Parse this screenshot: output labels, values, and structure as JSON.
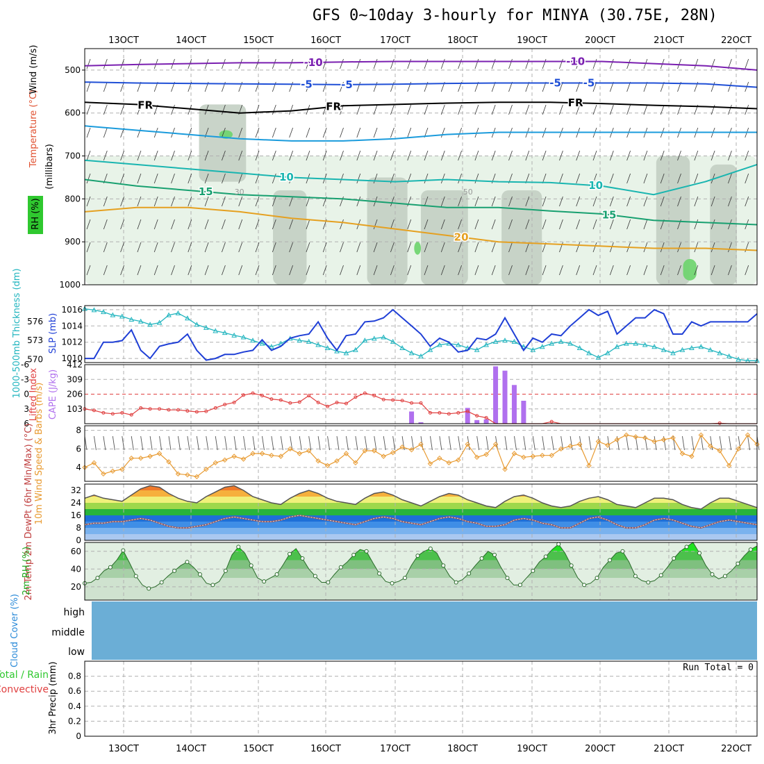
{
  "title": "GFS 0~10day 3-hourly for MINYA (30.75E, 28N)",
  "x_axis_labels": [
    "13OCT",
    "14OCT",
    "15OCT",
    "16OCT",
    "17OCT",
    "18OCT",
    "19OCT",
    "20OCT",
    "21OCT",
    "22OCT"
  ],
  "chart_data": [
    {
      "id": "upper_air",
      "type": "heatmap",
      "ylabel": "(millibars)",
      "ylim": [
        1000,
        450
      ],
      "yticks": [
        500,
        600,
        700,
        800,
        900,
        1000
      ],
      "legend_labels": {
        "rh": "RH (%)",
        "temperature": "Temperature (°C)",
        "wind": "Wind (m/s)"
      },
      "rh_contour_labels": [
        "30",
        "50"
      ],
      "isotherm_labels": [
        {
          "label": "-10",
          "t": 0.34
        },
        {
          "label": "-10",
          "t": 0.73
        },
        {
          "label": "-5",
          "t": 0.33
        },
        {
          "label": "-5",
          "t": 0.7
        },
        {
          "label": "FR",
          "t": 0.09
        },
        {
          "label": "FR",
          "t": 0.37
        },
        {
          "label": "FR",
          "t": 0.73
        },
        {
          "label": "-5",
          "t": 0.39
        },
        {
          "label": "-5",
          "t": 0.75
        },
        {
          "label": "10",
          "t": 0.3
        },
        {
          "label": "10",
          "t": 0.76
        },
        {
          "label": "15",
          "t": 0.18
        },
        {
          "label": "15",
          "t": 0.78
        },
        {
          "label": "20",
          "t": 0.56
        }
      ],
      "isotherms": [
        {
          "label": "-10",
          "color": "#7a1fb0",
          "p": [
            490,
            487,
            485,
            483,
            483,
            481,
            480,
            480,
            480,
            480,
            480,
            485,
            490,
            500
          ]
        },
        {
          "label": "-5",
          "color": "#1f4fd6",
          "p": [
            528,
            530,
            531,
            532,
            533,
            534,
            533,
            531,
            530,
            530,
            530,
            530,
            532,
            540
          ]
        },
        {
          "label": "FR",
          "color": "#000000",
          "p": [
            575,
            580,
            590,
            600,
            595,
            583,
            580,
            577,
            575,
            575,
            578,
            582,
            585,
            590
          ]
        },
        {
          "label": "-5",
          "color": "#1a9bdc",
          "p": [
            630,
            640,
            650,
            660,
            665,
            665,
            660,
            650,
            645,
            645,
            645,
            645,
            645,
            645
          ]
        },
        {
          "label": "10",
          "color": "#19b5b0",
          "p": [
            710,
            720,
            730,
            740,
            750,
            755,
            760,
            755,
            760,
            762,
            770,
            790,
            760,
            720
          ]
        },
        {
          "label": "15",
          "color": "#18a070",
          "p": [
            755,
            770,
            780,
            790,
            795,
            800,
            810,
            820,
            820,
            828,
            835,
            850,
            855,
            860
          ]
        },
        {
          "label": "20",
          "color": "#e5a020",
          "p": [
            830,
            820,
            820,
            830,
            845,
            855,
            870,
            885,
            900,
            905,
            910,
            915,
            915,
            920
          ]
        }
      ],
      "rh_blobs": [
        {
          "level": "light",
          "t": [
            0.0,
            1.0
          ],
          "p": [
            700,
            1000
          ]
        },
        {
          "level": "mid",
          "t": [
            0.17,
            0.24
          ],
          "p": [
            580,
            760
          ]
        },
        {
          "level": "mid",
          "t": [
            0.28,
            0.33
          ],
          "p": [
            780,
            1000
          ]
        },
        {
          "level": "mid",
          "t": [
            0.42,
            0.48
          ],
          "p": [
            750,
            1000
          ]
        },
        {
          "level": "mid",
          "t": [
            0.5,
            0.57
          ],
          "p": [
            780,
            1000
          ]
        },
        {
          "level": "mid",
          "t": [
            0.62,
            0.68
          ],
          "p": [
            780,
            1000
          ]
        },
        {
          "level": "mid",
          "t": [
            0.85,
            0.9
          ],
          "p": [
            700,
            1000
          ]
        },
        {
          "level": "mid",
          "t": [
            0.93,
            0.97
          ],
          "p": [
            720,
            1000
          ]
        },
        {
          "level": "dark",
          "t": [
            0.2,
            0.22
          ],
          "p": [
            640,
            660
          ]
        },
        {
          "level": "dark",
          "t": [
            0.49,
            0.5
          ],
          "p": [
            900,
            930
          ]
        },
        {
          "level": "dark",
          "t": [
            0.89,
            0.91
          ],
          "p": [
            940,
            990
          ]
        }
      ]
    },
    {
      "id": "slp_thickness",
      "type": "line",
      "ylabel_left": "1000-500mb Thickness (dm)",
      "ylabel_right": "SLP (mb)",
      "yticks_left": [
        570,
        573,
        576
      ],
      "yticks_right": [
        1010,
        1012,
        1014,
        1016
      ],
      "ylim_slp": [
        1009.5,
        1016.5
      ],
      "ylim_thk": [
        569.5,
        578.5
      ],
      "slp": [
        1010,
        1010,
        1012,
        1012,
        1012.2,
        1013.5,
        1011,
        1010,
        1011.5,
        1011.8,
        1012,
        1013,
        1011,
        1009.8,
        1010,
        1010.5,
        1010.5,
        1010.8,
        1011,
        1012.3,
        1011,
        1011.5,
        1012.5,
        1012.8,
        1013,
        1014.5,
        1012.5,
        1011,
        1012.8,
        1013,
        1014.5,
        1014.6,
        1015,
        1016,
        1015,
        1014,
        1013,
        1011.5,
        1012.5,
        1012,
        1010.8,
        1011,
        1012.5,
        1012.3,
        1013,
        1015,
        1013,
        1011,
        1012.5,
        1012,
        1013,
        1012.8,
        1014,
        1015,
        1016,
        1015.3,
        1015.8,
        1013,
        1014,
        1015,
        1015,
        1016,
        1015.5,
        1013,
        1013,
        1014.5,
        1014,
        1014.5,
        1014.5,
        1014.5,
        1014.5,
        1014.5,
        1015.5
      ],
      "thickness": [
        578,
        577.8,
        577.5,
        577,
        576.8,
        576.3,
        576,
        575.5,
        575.8,
        577,
        577.3,
        576.5,
        575.5,
        575,
        574.5,
        574.2,
        573.8,
        573.5,
        573,
        572.5,
        572,
        572.5,
        573.3,
        573,
        572.8,
        572.3,
        571.8,
        571.3,
        571,
        571.5,
        573,
        573.3,
        573.5,
        572.8,
        571.8,
        571,
        570.5,
        571.5,
        572.3,
        572.5,
        572.3,
        571.8,
        571.5,
        572.3,
        572.8,
        573,
        572.8,
        572,
        571.5,
        572,
        572.5,
        572.8,
        572.5,
        571.8,
        571,
        570.3,
        571,
        572,
        572.5,
        572.5,
        572.3,
        572,
        571.5,
        571,
        571.5,
        571.8,
        572,
        571.5,
        571,
        570.5,
        570,
        569.8,
        569.8
      ]
    },
    {
      "id": "cape_li",
      "type": "bar",
      "ylabel_left": "Lifted Index",
      "ylabel_right": "CAPE (J/kg)",
      "yticks_li": [
        "-6",
        "-3",
        "0",
        "3",
        "6"
      ],
      "yticks_cape": [
        103,
        206,
        309,
        412
      ],
      "ylim_cape": [
        0,
        412
      ],
      "ylim_li": [
        -6,
        6
      ],
      "lifted_index": [
        3,
        3.3,
        3.8,
        4,
        3.8,
        4.2,
        2.8,
        3,
        3,
        3.2,
        3.2,
        3.4,
        3.6,
        3.5,
        2.8,
        2.1,
        1.7,
        0.2,
        -0.2,
        0.3,
        1,
        1.2,
        1.8,
        1.6,
        0.3,
        1.7,
        2.5,
        1.7,
        1.9,
        0.6,
        -0.2,
        0.3,
        1.1,
        1.2,
        1.3,
        1.8,
        1.8,
        3.8,
        3.8,
        4,
        3.8,
        3.5,
        4.4,
        4.8,
        6,
        6.5,
        6.4,
        6.2,
        6.3,
        6.4,
        5.6,
        6.4,
        6.4,
        6.5,
        6.6,
        6.6,
        6.7,
        6.8,
        6.9,
        7,
        7,
        6.8,
        6.8,
        6.8,
        6.7,
        6.5,
        6.6,
        6.7,
        5.9,
        6,
        6.5,
        7,
        6.2
      ],
      "cape": [
        0,
        0,
        0,
        0,
        0,
        0,
        0,
        0,
        0,
        0,
        0,
        0,
        0,
        0,
        0,
        0,
        0,
        0,
        0,
        0,
        0,
        0,
        0,
        0,
        0,
        0,
        0,
        0,
        0,
        0,
        0,
        0,
        0,
        0,
        0,
        85,
        10,
        0,
        0,
        0,
        0,
        110,
        25,
        30,
        400,
        370,
        270,
        160,
        0,
        0,
        0,
        0,
        0,
        0,
        0,
        0,
        0,
        0,
        0,
        0,
        0,
        0,
        0,
        0,
        0,
        0,
        0,
        0,
        0,
        0,
        0,
        0,
        0
      ]
    },
    {
      "id": "wind10m",
      "type": "line",
      "ylabel": "10m Wind Speed & Barbs (m/s)",
      "yticks": [
        4,
        6,
        8
      ],
      "ylim": [
        2.5,
        8.5
      ],
      "speed": [
        4,
        4.5,
        3.3,
        3.6,
        3.8,
        5,
        5,
        5.2,
        5.5,
        4.6,
        3.3,
        3.2,
        3,
        3.8,
        4.5,
        4.8,
        5.2,
        4.9,
        5.5,
        5.5,
        5.3,
        5.2,
        6.0,
        5.5,
        5.8,
        4.7,
        4.2,
        4.7,
        5.5,
        4.5,
        5.8,
        5.8,
        5.2,
        5.6,
        6.2,
        5.9,
        6.5,
        4.4,
        5,
        4.5,
        4.8,
        6.5,
        5.1,
        5.4,
        6.5,
        3.8,
        5.5,
        5.1,
        5.2,
        5.3,
        5.3,
        6,
        6.3,
        6.5,
        4.2,
        6.8,
        6.4,
        7.0,
        7.5,
        7.3,
        7.2,
        6.8,
        7.0,
        7.2,
        5.5,
        5.2,
        7.5,
        6.3,
        5.8,
        4.2,
        6,
        7.5,
        6.5
      ]
    },
    {
      "id": "temperature",
      "type": "area",
      "ylabel": "2m Temp 2m DewPt (6hr Min/Max) (°C)",
      "yticks": [
        "0",
        "8",
        "16",
        "24",
        "32"
      ],
      "ylim": [
        0,
        36
      ],
      "temp": [
        27,
        29,
        27,
        26,
        25,
        29,
        33,
        35,
        34,
        30,
        27,
        25,
        24,
        28,
        31,
        34,
        35,
        32,
        28,
        26,
        24,
        23,
        27,
        30,
        32,
        30,
        27,
        25,
        24,
        23,
        27,
        30,
        31,
        29,
        26,
        24,
        22,
        25,
        28,
        30,
        29,
        26,
        24,
        22,
        21,
        25,
        28,
        29,
        27,
        24,
        22,
        21,
        22,
        25,
        27,
        28,
        26,
        23,
        22,
        21,
        24,
        27,
        27,
        26,
        23,
        21,
        20,
        24,
        27,
        27,
        25,
        23,
        21
      ],
      "dewpt": [
        10,
        11,
        11,
        12,
        12,
        13,
        14,
        13,
        11,
        9,
        8,
        8,
        9,
        10,
        12,
        14,
        15,
        14,
        13,
        12,
        12,
        13,
        15,
        16,
        15,
        14,
        13,
        12,
        11,
        10,
        12,
        14,
        15,
        14,
        12,
        11,
        10,
        12,
        14,
        15,
        14,
        12,
        11,
        9,
        9,
        10,
        13,
        14,
        13,
        11,
        10,
        8,
        8,
        11,
        14,
        15,
        13,
        10,
        8,
        8,
        10,
        13,
        14,
        13,
        11,
        9,
        8,
        10,
        12,
        13,
        12,
        11,
        10
      ]
    },
    {
      "id": "rh2m",
      "type": "area",
      "ylabel": "2m RH (%)",
      "yticks": [
        20,
        40,
        60
      ],
      "ylim": [
        5,
        70
      ],
      "rh": [
        24,
        25,
        30,
        38,
        42,
        50,
        61,
        47,
        32,
        22,
        18,
        20,
        25,
        32,
        38,
        44,
        48,
        42,
        34,
        24,
        22,
        26,
        38,
        56,
        65,
        58,
        44,
        30,
        26,
        30,
        34,
        45,
        57,
        63,
        52,
        40,
        32,
        25,
        25,
        34,
        42,
        48,
        56,
        62,
        60,
        47,
        35,
        26,
        24,
        26,
        30,
        44,
        55,
        60,
        63,
        58,
        44,
        32,
        25,
        28,
        35,
        44,
        52,
        60,
        56,
        42,
        30,
        22,
        22,
        30,
        38,
        48,
        54,
        62,
        68,
        58,
        44,
        30,
        22,
        24,
        30,
        42,
        50,
        58,
        60,
        48,
        32,
        27,
        25,
        27,
        33,
        42,
        52,
        60,
        65,
        70,
        58,
        44,
        34,
        29,
        32,
        38,
        46,
        55,
        62,
        66
      ]
    },
    {
      "id": "cloud",
      "type": "heatmap",
      "ylabel": "Cloud Cover (%)",
      "row_labels": [
        "high",
        "middle",
        "low"
      ]
    },
    {
      "id": "precip",
      "type": "bar",
      "ylabel": "3hr Precip (mm)",
      "legend_labels": {
        "total": "Total / Rain",
        "convective": "Convective"
      },
      "yticks": [
        "0",
        "0.2",
        "0.4",
        "0.6",
        "0.8"
      ],
      "ylim": [
        0,
        1
      ],
      "run_total": "Run Total = 0",
      "values": []
    }
  ],
  "colors": {
    "grid": "#b0b0b0",
    "slp": "#1f3fd6",
    "thickness": "#22b5bf",
    "cape": "#b070ee",
    "li": "#e04040",
    "wind": "#e89a30",
    "rh": "#2fc82f",
    "cloud": "#6baed6",
    "rh_light": "#e6f2e6",
    "rh_mid": "#c3cfc3",
    "rh_dark": "#6cd46c"
  }
}
